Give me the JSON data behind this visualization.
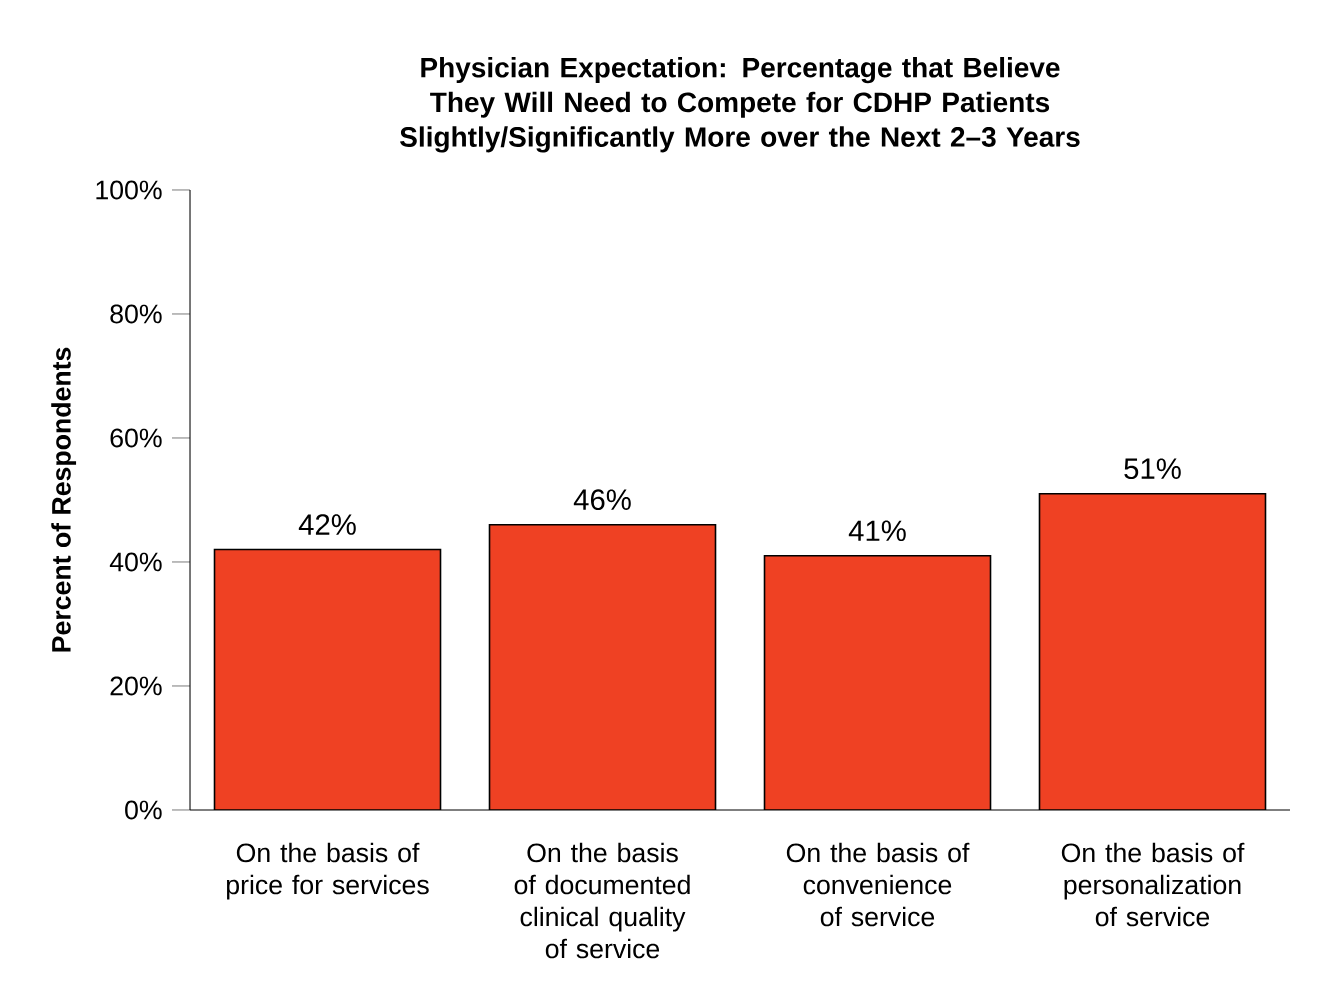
{
  "chart_data": {
    "type": "bar",
    "title": "Physician Expectation: Percentage that Believe They Will Need to Compete for CDHP Patients Slightly/Significantly More over the Next 2–3 Years",
    "ylabel": "Percent of Respondents",
    "categories": [
      "On the basis of price for services",
      "On the basis of documented clinical quality of service",
      "On the basis of convenience of service",
      "On the basis of personalization of service"
    ],
    "values": [
      42,
      46,
      41,
      51
    ],
    "value_labels": [
      "42%",
      "46%",
      "41%",
      "51%"
    ],
    "color": "#ef4123",
    "ylim": [
      0,
      100
    ],
    "yticks": [
      {
        "value": 0,
        "label": "0%"
      },
      {
        "value": 20,
        "label": "20%"
      },
      {
        "value": 40,
        "label": "40%"
      },
      {
        "value": 60,
        "label": "60%"
      },
      {
        "value": 80,
        "label": "80%"
      },
      {
        "value": 100,
        "label": "100%"
      }
    ],
    "grid": false
  }
}
